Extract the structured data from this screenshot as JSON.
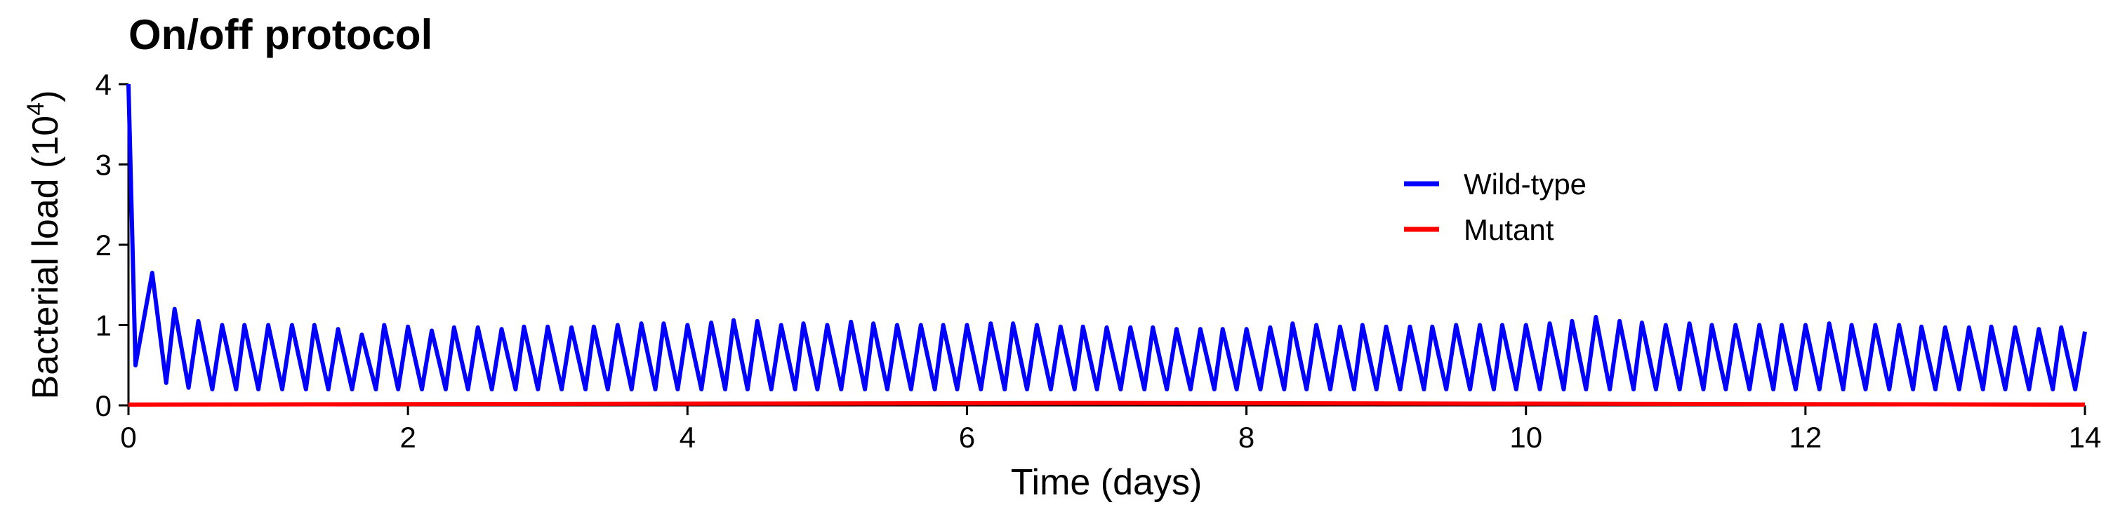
{
  "chart_data": {
    "type": "line",
    "title": "On/off protocol",
    "xlabel": "Time (days)",
    "ylabel": "Bacterial load (10",
    "ylabel_sup": "4",
    "ylabel_end": ")",
    "xlim": [
      0,
      14
    ],
    "xticks": [
      0,
      2,
      4,
      6,
      8,
      10,
      12,
      14
    ],
    "ylim": [
      0,
      4
    ],
    "yticks": [
      0,
      1,
      2,
      3,
      4
    ],
    "legend": "upper right",
    "x": [
      0,
      0.05,
      0.17,
      0.27,
      0.33,
      0.43,
      0.5,
      0.6,
      0.67,
      0.77,
      0.83,
      0.93,
      1,
      1.1,
      1.17,
      1.27,
      1.33,
      1.43,
      1.5,
      1.6,
      1.67,
      1.77,
      1.83,
      1.93,
      2,
      2.1,
      2.17,
      2.27,
      2.33,
      2.43,
      2.5,
      2.6,
      2.67,
      2.77,
      2.83,
      2.93,
      3,
      3.1,
      3.17,
      3.27,
      3.33,
      3.43,
      3.5,
      3.6,
      3.67,
      3.77,
      3.83,
      3.93,
      4,
      4.1,
      4.17,
      4.27,
      4.33,
      4.43,
      4.5,
      4.6,
      4.67,
      4.77,
      4.83,
      4.93,
      5,
      5.1,
      5.17,
      5.27,
      5.33,
      5.43,
      5.5,
      5.6,
      5.67,
      5.77,
      5.83,
      5.93,
      6,
      6.1,
      6.17,
      6.27,
      6.33,
      6.43,
      6.5,
      6.6,
      6.67,
      6.77,
      6.83,
      6.93,
      7,
      7.1,
      7.17,
      7.27,
      7.33,
      7.43,
      7.5,
      7.6,
      7.67,
      7.77,
      7.83,
      7.93,
      8,
      8.1,
      8.17,
      8.27,
      8.33,
      8.43,
      8.5,
      8.6,
      8.67,
      8.77,
      8.83,
      8.93,
      9,
      9.1,
      9.17,
      9.27,
      9.33,
      9.43,
      9.5,
      9.6,
      9.67,
      9.77,
      9.83,
      9.93,
      10,
      10.1,
      10.17,
      10.27,
      10.33,
      10.43,
      10.5,
      10.6,
      10.67,
      10.77,
      10.83,
      10.93,
      11,
      11.1,
      11.17,
      11.27,
      11.33,
      11.43,
      11.5,
      11.6,
      11.67,
      11.77,
      11.83,
      11.93,
      12,
      12.1,
      12.17,
      12.27,
      12.33,
      12.43,
      12.5,
      12.6,
      12.67,
      12.77,
      12.83,
      12.93,
      13,
      13.1,
      13.17,
      13.27,
      13.33,
      13.43,
      13.5,
      13.6,
      13.67,
      13.77,
      13.83,
      13.93,
      14
    ],
    "series": [
      {
        "name": "Wild-type",
        "color": "#0000ff",
        "values": [
          4,
          0.5,
          1.65,
          0.28,
          1.2,
          0.22,
          1.05,
          0.2,
          1.0,
          0.2,
          1.0,
          0.2,
          1.0,
          0.2,
          1.0,
          0.2,
          1.0,
          0.2,
          0.95,
          0.2,
          0.88,
          0.2,
          1.0,
          0.2,
          0.98,
          0.2,
          0.93,
          0.2,
          0.97,
          0.2,
          0.97,
          0.2,
          0.95,
          0.2,
          0.98,
          0.2,
          0.98,
          0.2,
          0.97,
          0.2,
          0.98,
          0.2,
          1.0,
          0.2,
          1.02,
          0.2,
          1.02,
          0.2,
          1.0,
          0.2,
          1.03,
          0.2,
          1.06,
          0.2,
          1.05,
          0.2,
          1.0,
          0.2,
          1.02,
          0.2,
          1.0,
          0.2,
          1.04,
          0.2,
          1.02,
          0.2,
          1.0,
          0.2,
          1.0,
          0.2,
          1.0,
          0.2,
          1.0,
          0.2,
          1.02,
          0.2,
          1.02,
          0.2,
          1.0,
          0.2,
          0.98,
          0.2,
          0.98,
          0.2,
          0.97,
          0.2,
          0.97,
          0.2,
          0.97,
          0.2,
          0.95,
          0.2,
          0.95,
          0.2,
          0.95,
          0.2,
          0.95,
          0.2,
          0.97,
          0.2,
          1.02,
          0.2,
          1.0,
          0.2,
          0.98,
          0.2,
          1.0,
          0.2,
          0.98,
          0.2,
          0.98,
          0.2,
          0.98,
          0.2,
          1.0,
          0.2,
          1.0,
          0.2,
          1.0,
          0.2,
          1.0,
          0.2,
          1.02,
          0.2,
          1.05,
          0.2,
          1.1,
          0.2,
          1.05,
          0.2,
          1.03,
          0.2,
          1.0,
          0.2,
          1.02,
          0.2,
          1.0,
          0.2,
          1.0,
          0.2,
          1.0,
          0.2,
          1.0,
          0.2,
          1.0,
          0.2,
          1.02,
          0.2,
          1.0,
          0.2,
          1.0,
          0.2,
          1.0,
          0.2,
          0.98,
          0.2,
          0.97,
          0.2,
          0.97,
          0.2,
          0.98,
          0.2,
          0.97,
          0.2,
          0.95,
          0.2,
          0.97,
          0.2,
          0.92
        ]
      },
      {
        "name": "Mutant",
        "color": "#ff0000",
        "x": [
          0,
          7,
          14
        ],
        "values": [
          0.01,
          0.03,
          0.01
        ]
      }
    ]
  }
}
